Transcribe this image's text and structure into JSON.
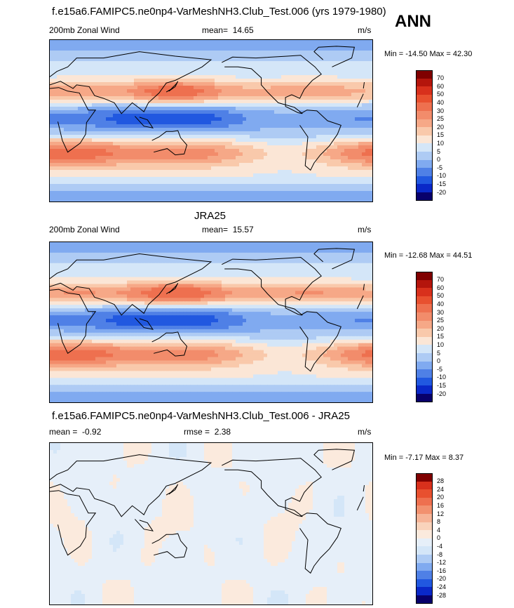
{
  "title": "f.e15a6.FAMIPC5.ne0np4-VarMeshNH3.Club_Test.006 (yrs 1979-1980)",
  "season": "ANN",
  "colors": {
    "wind_scale": [
      "#08006b",
      "#0a28c8",
      "#2158e0",
      "#4f80e6",
      "#80aaf0",
      "#aecbf4",
      "#d4e6f8",
      "#fbe6d6",
      "#f9c9ab",
      "#f6a887",
      "#f28c6b",
      "#ee704f",
      "#e8502f",
      "#d8301c",
      "#b4150c",
      "#800000"
    ],
    "diff_scale": [
      "#08006b",
      "#0a28c8",
      "#2158e0",
      "#4f80e6",
      "#80aaf0",
      "#aecbf4",
      "#d4e6f8",
      "#e6eff9",
      "#fbeadd",
      "#f9d3bb",
      "#f6b497",
      "#f2916f",
      "#ee704f",
      "#e8502f",
      "#d8301c",
      "#800000"
    ]
  },
  "chart_data": [
    {
      "type": "heatmap",
      "panel": "model",
      "field": "200mb Zonal Wind",
      "mean_label": "mean=",
      "mean": "14.65",
      "units": "m/s",
      "min_max": "Min = -14.50 Max =  42.30",
      "colorbar_levels": [
        "70",
        "60",
        "50",
        "40",
        "30",
        "25",
        "20",
        "15",
        "10",
        "5",
        "0",
        "-5",
        "-10",
        "-15",
        "-20"
      ],
      "levels": [
        -20,
        -15,
        -10,
        -5,
        0,
        5,
        10,
        15,
        20,
        25,
        30,
        40,
        50,
        60,
        70
      ],
      "region": "global 0E-360E, 90S-90N"
    },
    {
      "type": "heatmap",
      "panel": "obs",
      "title": "JRA25",
      "field": "200mb Zonal Wind",
      "mean_label": "mean=",
      "mean": "15.57",
      "units": "m/s",
      "min_max": "Min = -12.68 Max =  44.51",
      "colorbar_levels": [
        "70",
        "60",
        "50",
        "40",
        "30",
        "25",
        "20",
        "15",
        "10",
        "5",
        "0",
        "-5",
        "-10",
        "-15",
        "-20"
      ],
      "levels": [
        -20,
        -15,
        -10,
        -5,
        0,
        5,
        10,
        15,
        20,
        25,
        30,
        40,
        50,
        60,
        70
      ],
      "region": "global 0E-360E, 90S-90N"
    },
    {
      "type": "heatmap",
      "panel": "diff",
      "title": "f.e15a6.FAMIPC5.ne0np4-VarMeshNH3.Club_Test.006 - JRA25",
      "mean_label": "mean =",
      "mean": "-0.92",
      "rmse_label": "rmse =",
      "rmse": "2.38",
      "units": "m/s",
      "min_max": "Min =  -7.17 Max =   8.37",
      "colorbar_levels": [
        "28",
        "24",
        "20",
        "16",
        "12",
        "8",
        "4",
        "0",
        "-4",
        "-8",
        "-12",
        "-16",
        "-20",
        "-24",
        "-28"
      ],
      "levels": [
        -28,
        -24,
        -20,
        -16,
        -12,
        -8,
        -4,
        0,
        4,
        8,
        12,
        16,
        20,
        24,
        28
      ],
      "region": "global 0E-360E, 90S-90N"
    }
  ]
}
